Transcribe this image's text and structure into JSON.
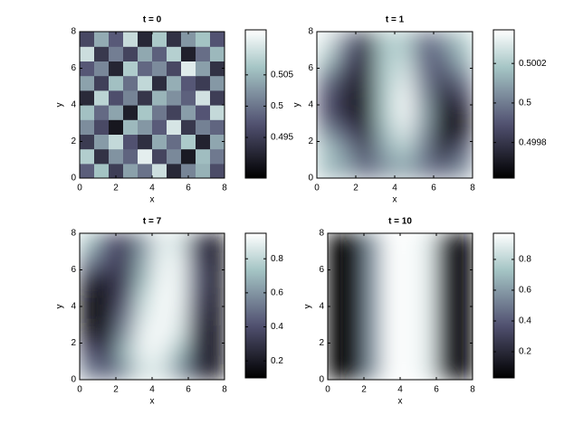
{
  "chart_data": [
    {
      "type": "heatmap",
      "title": "t = 0",
      "xlabel": "x",
      "ylabel": "y",
      "xlim": [
        0,
        8
      ],
      "ylim": [
        0,
        8
      ],
      "xticks": [
        0,
        2,
        4,
        6,
        8
      ],
      "yticks": [
        0,
        2,
        4,
        6,
        8
      ],
      "colormap": "bone",
      "smooth": false,
      "clim": [
        0.4885,
        0.5122
      ],
      "cticks": [
        0.495,
        0.5,
        0.505
      ],
      "z": [
        [
          0.4982,
          0.5061,
          0.4951,
          0.5034,
          0.4998,
          0.5089,
          0.4927,
          0.5012,
          0.5047,
          0.4965
        ],
        [
          0.5071,
          0.4939,
          0.5023,
          0.4986,
          0.5104,
          0.4958,
          0.5015,
          0.4912,
          0.5056,
          0.5003
        ],
        [
          0.4947,
          0.5029,
          0.5082,
          0.4971,
          0.4935,
          0.5041,
          0.4993,
          0.5067,
          0.4921,
          0.5038
        ],
        [
          0.5018,
          0.4962,
          0.4909,
          0.5053,
          0.5026,
          0.4979,
          0.5095,
          0.4944,
          0.5009,
          0.4987
        ],
        [
          0.5059,
          0.4991,
          0.5036,
          0.4918,
          0.5064,
          0.5002,
          0.4955,
          0.5031,
          0.4974,
          0.5083
        ],
        [
          0.4929,
          0.5077,
          0.4968,
          0.5011,
          0.4942,
          0.5049,
          0.5021,
          0.4984,
          0.5092,
          0.4951
        ],
        [
          0.5035,
          0.4953,
          0.5058,
          0.4996,
          0.5081,
          0.4933,
          0.5044,
          0.4976,
          0.4949,
          0.5027
        ],
        [
          0.4976,
          0.5014,
          0.4924,
          0.5069,
          0.4989,
          0.5017,
          0.4961,
          0.5101,
          0.5032,
          0.4938
        ],
        [
          0.5088,
          0.4945,
          0.5007,
          0.4957,
          0.5039,
          0.4983,
          0.5073,
          0.4919,
          0.4994,
          0.5052
        ],
        [
          0.4961,
          0.5042,
          0.4978,
          0.5085,
          0.4926,
          0.5066,
          0.4937,
          0.5025,
          0.5061,
          0.4972
        ]
      ]
    },
    {
      "type": "heatmap",
      "title": "t = 1",
      "xlabel": "x",
      "ylabel": "y",
      "xlim": [
        0,
        8
      ],
      "ylim": [
        0,
        8
      ],
      "xticks": [
        0,
        2,
        4,
        6,
        8
      ],
      "yticks": [
        0,
        2,
        4,
        6,
        8
      ],
      "colormap": "bone",
      "smooth": true,
      "clim": [
        0.49962,
        0.50037
      ],
      "cticks": [
        0.4998,
        0.5,
        0.5002
      ],
      "z": [
        [
          0.50015,
          0.5001,
          0.49995,
          0.50005,
          0.5001,
          0.5,
          0.49995,
          0.50005
        ],
        [
          0.5002,
          0.50005,
          0.49985,
          0.5001,
          0.5002,
          0.5,
          0.49975,
          0.49995
        ],
        [
          0.50005,
          0.4999,
          0.49975,
          0.50015,
          0.5003,
          0.50005,
          0.49965,
          0.49975
        ],
        [
          0.4999,
          0.49975,
          0.4997,
          0.5002,
          0.50035,
          0.5001,
          0.49965,
          0.49975
        ],
        [
          0.4999,
          0.49975,
          0.4997,
          0.5002,
          0.50035,
          0.50005,
          0.49975,
          0.49985
        ],
        [
          0.5,
          0.4998,
          0.49975,
          0.5002,
          0.5003,
          0.5,
          0.49985,
          0.5
        ],
        [
          0.5002,
          0.4999,
          0.49975,
          0.5002,
          0.50025,
          0.49995,
          0.49995,
          0.50015
        ],
        [
          0.5003,
          0.5,
          0.4998,
          0.5002,
          0.5002,
          0.49995,
          0.50005,
          0.5002
        ]
      ]
    },
    {
      "type": "heatmap",
      "title": "t = 7",
      "xlabel": "x",
      "ylabel": "y",
      "xlim": [
        0,
        8
      ],
      "ylim": [
        0,
        8
      ],
      "xticks": [
        0,
        2,
        4,
        6,
        8
      ],
      "yticks": [
        0,
        2,
        4,
        6,
        8
      ],
      "colormap": "bone",
      "smooth": true,
      "clim": [
        0.1,
        0.95
      ],
      "cticks": [
        0.2,
        0.4,
        0.6,
        0.8
      ],
      "z": [
        [
          0.55,
          0.45,
          0.6,
          0.85,
          0.85,
          0.6,
          0.3,
          0.2
        ],
        [
          0.4,
          0.35,
          0.7,
          0.9,
          0.9,
          0.7,
          0.3,
          0.15
        ],
        [
          0.2,
          0.25,
          0.6,
          0.9,
          0.93,
          0.85,
          0.3,
          0.15
        ],
        [
          0.15,
          0.2,
          0.5,
          0.85,
          0.93,
          0.88,
          0.35,
          0.15
        ],
        [
          0.15,
          0.2,
          0.4,
          0.8,
          0.93,
          0.9,
          0.4,
          0.15
        ],
        [
          0.25,
          0.25,
          0.35,
          0.7,
          0.92,
          0.9,
          0.45,
          0.15
        ],
        [
          0.55,
          0.4,
          0.35,
          0.65,
          0.9,
          0.9,
          0.4,
          0.15
        ],
        [
          0.75,
          0.45,
          0.35,
          0.6,
          0.88,
          0.85,
          0.35,
          0.15
        ]
      ]
    },
    {
      "type": "heatmap",
      "title": "t = 10",
      "xlabel": "x",
      "ylabel": "y",
      "xlim": [
        0,
        8
      ],
      "ylim": [
        0,
        8
      ],
      "xticks": [
        0,
        2,
        4,
        6,
        8
      ],
      "yticks": [
        0,
        2,
        4,
        6,
        8
      ],
      "colormap": "bone",
      "smooth": true,
      "clim": [
        0.03,
        0.97
      ],
      "cticks": [
        0.2,
        0.4,
        0.6,
        0.8
      ],
      "z": [
        [
          0.04,
          0.08,
          0.6,
          0.96,
          0.96,
          0.9,
          0.15,
          0.04
        ],
        [
          0.04,
          0.08,
          0.6,
          0.96,
          0.96,
          0.9,
          0.15,
          0.04
        ],
        [
          0.04,
          0.08,
          0.6,
          0.96,
          0.96,
          0.9,
          0.15,
          0.04
        ],
        [
          0.04,
          0.08,
          0.6,
          0.96,
          0.96,
          0.9,
          0.15,
          0.04
        ],
        [
          0.04,
          0.08,
          0.6,
          0.96,
          0.96,
          0.9,
          0.15,
          0.04
        ],
        [
          0.04,
          0.08,
          0.6,
          0.96,
          0.96,
          0.9,
          0.15,
          0.04
        ],
        [
          0.04,
          0.08,
          0.6,
          0.96,
          0.96,
          0.9,
          0.15,
          0.04
        ],
        [
          0.04,
          0.08,
          0.6,
          0.96,
          0.96,
          0.9,
          0.15,
          0.04
        ]
      ]
    }
  ]
}
